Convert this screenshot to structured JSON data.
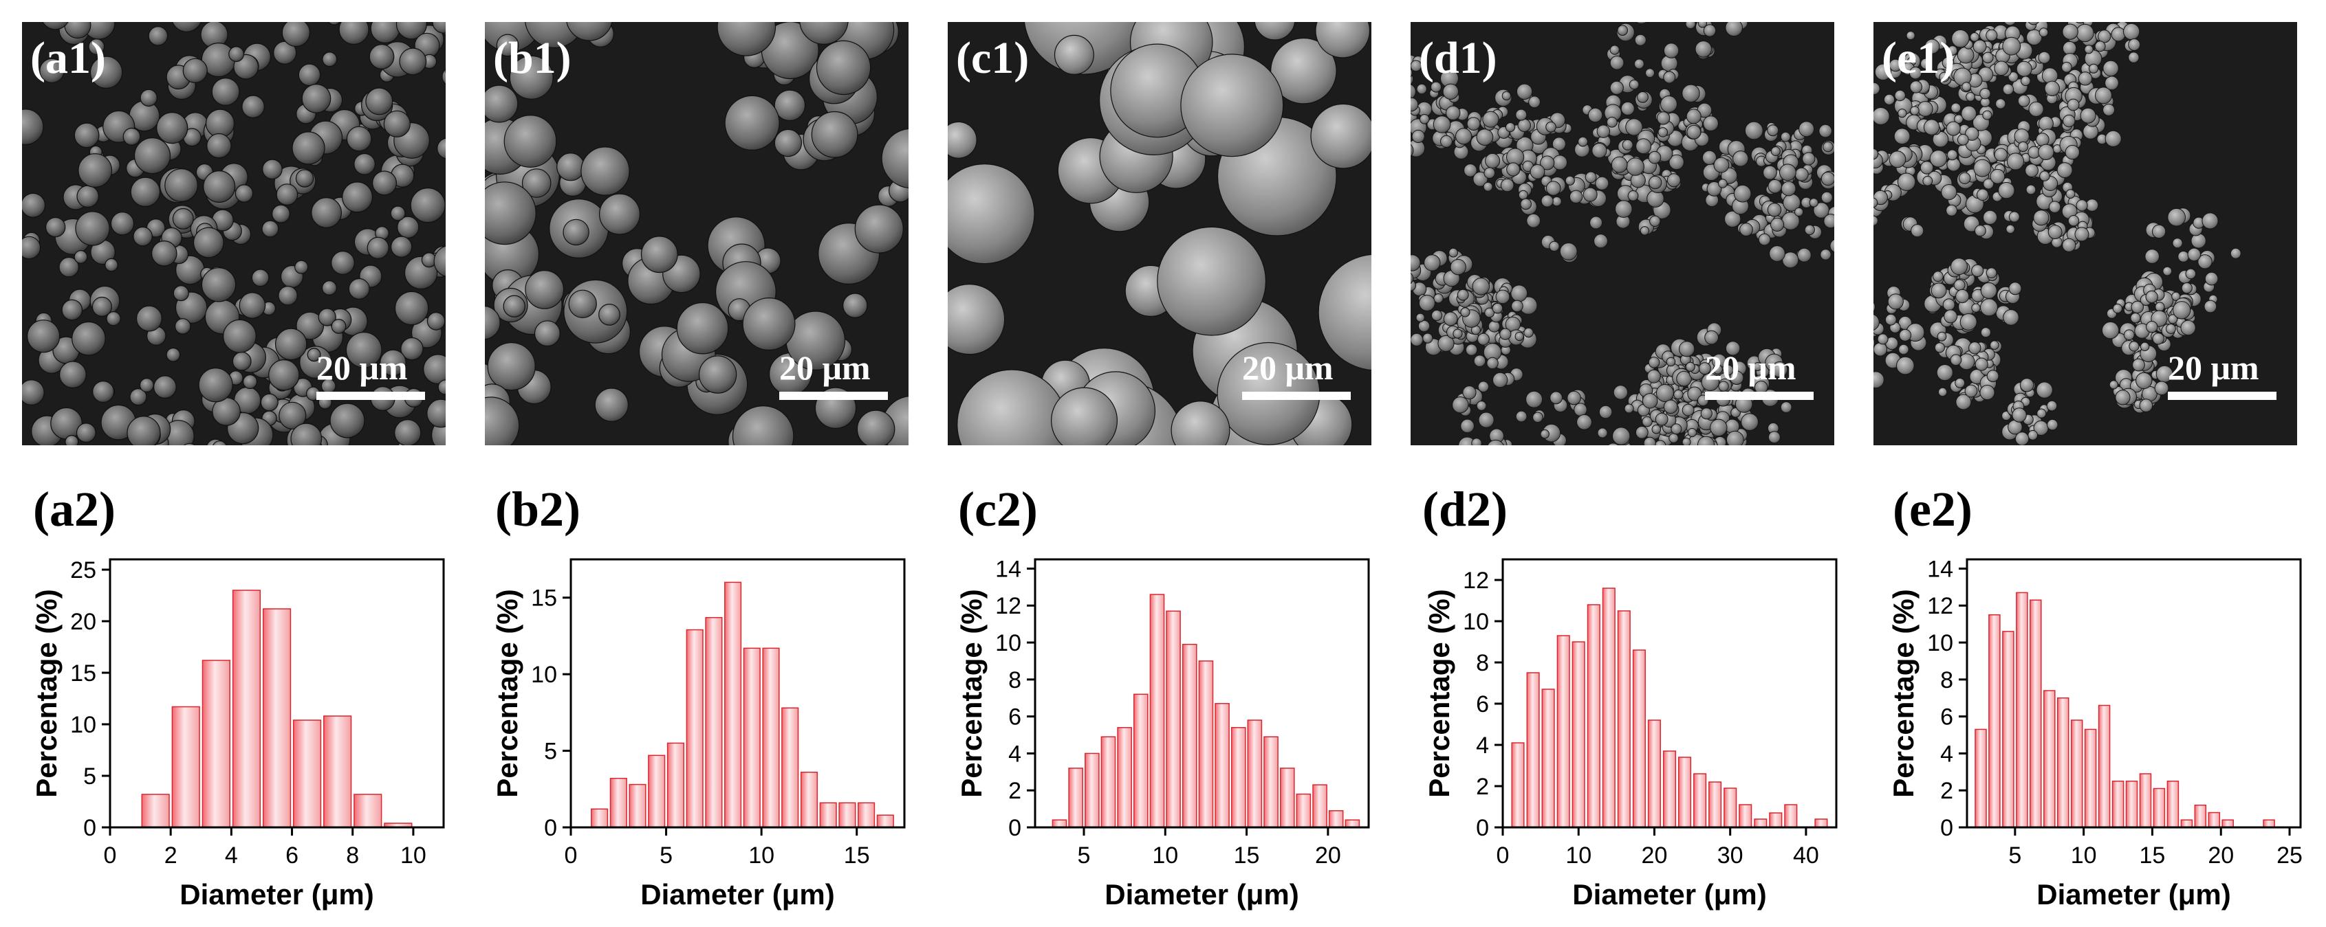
{
  "colors": {
    "bar_fill": "#f4a1a5",
    "bar_stroke": "#d9262f",
    "axis": "#000000"
  },
  "sem_images": [
    {
      "label": "(a1)",
      "scale_bar": "20 μm",
      "morphology": "dense-small-spheres"
    },
    {
      "label": "(b1)",
      "scale_bar": "20 μm",
      "morphology": "medium-spheres"
    },
    {
      "label": "(c1)",
      "scale_bar": "20 μm",
      "morphology": "large-spheres"
    },
    {
      "label": "(d1)",
      "scale_bar": "20 μm",
      "morphology": "aggregated-clusters"
    },
    {
      "label": "(e1)",
      "scale_bar": "20 μm",
      "morphology": "loose-particles"
    }
  ],
  "chart_data": [
    {
      "label": "(a2)",
      "type": "bar",
      "xlabel": "Diameter (μm)",
      "ylabel": "Percentage (%)",
      "xlim": [
        0,
        11
      ],
      "ylim": [
        0,
        26
      ],
      "xticks": [
        0,
        2,
        4,
        6,
        8,
        10
      ],
      "yticks": [
        0,
        5,
        10,
        15,
        20,
        25
      ],
      "bin_width": 0.9,
      "x": [
        1.5,
        2.5,
        3.5,
        4.5,
        5.5,
        6.5,
        7.5,
        8.5,
        9.5
      ],
      "values": [
        3.2,
        11.7,
        16.2,
        23.0,
        21.2,
        10.4,
        10.8,
        3.2,
        0.4
      ]
    },
    {
      "label": "(b2)",
      "type": "bar",
      "xlabel": "Diameter (μm)",
      "ylabel": "Percentage (%)",
      "xlim": [
        0,
        17.5
      ],
      "ylim": [
        0,
        17.5
      ],
      "xticks": [
        0,
        5,
        10,
        15
      ],
      "yticks": [
        0,
        5,
        10,
        15
      ],
      "bin_width": 0.85,
      "x": [
        1.5,
        2.5,
        3.5,
        4.5,
        5.5,
        6.5,
        7.5,
        8.5,
        9.5,
        10.5,
        11.5,
        12.5,
        13.5,
        14.5,
        15.5,
        16.5
      ],
      "values": [
        1.2,
        3.2,
        2.8,
        4.7,
        5.5,
        12.9,
        13.7,
        16.0,
        11.7,
        11.7,
        7.8,
        3.6,
        1.6,
        1.6,
        1.6,
        0.8
      ]
    },
    {
      "label": "(c2)",
      "type": "bar",
      "xlabel": "Diameter (μm)",
      "ylabel": "Percentage (%)",
      "xlim": [
        2,
        22.5
      ],
      "ylim": [
        0,
        14.5
      ],
      "xticks": [
        5,
        10,
        15,
        20
      ],
      "yticks": [
        0,
        2,
        4,
        6,
        8,
        10,
        12,
        14
      ],
      "bin_width": 0.85,
      "x": [
        3.5,
        4.5,
        5.5,
        6.5,
        7.5,
        8.5,
        9.5,
        10.5,
        11.5,
        12.5,
        13.5,
        14.5,
        15.5,
        16.5,
        17.5,
        18.5,
        19.5,
        20.5,
        21.5
      ],
      "values": [
        0.4,
        3.2,
        4.0,
        4.9,
        5.4,
        7.2,
        12.6,
        11.7,
        9.9,
        9.0,
        6.7,
        5.4,
        5.8,
        4.9,
        3.2,
        1.8,
        2.3,
        0.9,
        0.4
      ]
    },
    {
      "label": "(d2)",
      "type": "bar",
      "xlabel": "Diameter (μm)",
      "ylabel": "Percentage (%)",
      "xlim": [
        0,
        44
      ],
      "ylim": [
        0,
        13
      ],
      "xticks": [
        0,
        10,
        20,
        30,
        40
      ],
      "yticks": [
        0,
        2,
        4,
        6,
        8,
        10,
        12
      ],
      "bin_width": 1.6,
      "x": [
        2,
        4,
        6,
        8,
        10,
        12,
        14,
        16,
        18,
        20,
        22,
        24,
        26,
        28,
        30,
        32,
        34,
        36,
        38,
        42
      ],
      "values": [
        4.1,
        7.5,
        6.7,
        9.3,
        9.0,
        10.8,
        11.6,
        10.5,
        8.6,
        5.2,
        3.7,
        3.4,
        2.6,
        2.2,
        1.9,
        1.1,
        0.4,
        0.7,
        1.1,
        0.4
      ]
    },
    {
      "label": "(e2)",
      "type": "bar",
      "xlabel": "Diameter (μm)",
      "ylabel": "Percentage (%)",
      "xlim": [
        1.5,
        25.8
      ],
      "ylim": [
        0,
        14.5
      ],
      "xticks": [
        5,
        10,
        15,
        20,
        25
      ],
      "yticks": [
        0,
        2,
        4,
        6,
        8,
        10,
        12,
        14
      ],
      "bin_width": 0.8,
      "x": [
        2.5,
        3.5,
        4.5,
        5.5,
        6.5,
        7.5,
        8.5,
        9.5,
        10.5,
        11.5,
        12.5,
        13.5,
        14.5,
        15.5,
        16.5,
        17.5,
        18.5,
        19.5,
        20.5,
        23.5
      ],
      "values": [
        5.3,
        11.5,
        10.6,
        12.7,
        12.3,
        7.4,
        7.0,
        5.8,
        5.3,
        6.6,
        2.5,
        2.5,
        2.9,
        2.1,
        2.5,
        0.4,
        1.2,
        0.8,
        0.4,
        0.4
      ]
    }
  ]
}
